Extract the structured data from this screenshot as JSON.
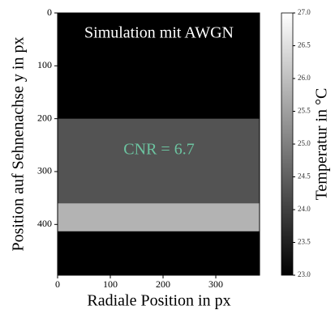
{
  "chart_data": {
    "type": "image",
    "annotations": [
      "Simulation mit AWGN",
      "CNR = 6.7"
    ],
    "x_label": "Radiale Position in px",
    "y_label": "Position auf Sehnenachse y in px",
    "colorbar_label": "Temperatur in °C",
    "colormap": "gray",
    "xlim": [
      0,
      383
    ],
    "ylim": [
      496,
      0
    ],
    "xticks": [
      0,
      100,
      200,
      300
    ],
    "yticks": [
      0,
      100,
      200,
      300,
      400
    ],
    "background": 23,
    "bands": [
      {
        "y": [
          200,
          360
        ],
        "value": 24.3
      },
      {
        "y": [
          360,
          413
        ],
        "value": 25.8
      }
    ],
    "clim": [
      23,
      27
    ],
    "cticks": [
      {
        "value": 23,
        "label": "23.0"
      },
      23.5,
      {
        "value": 24,
        "label": "24.0"
      },
      24.5,
      {
        "value": 25,
        "label": "25.0"
      },
      25.5,
      {
        "value": 26,
        "label": "26.0"
      },
      26.5,
      {
        "value": 27,
        "label": "27.0"
      }
    ],
    "annotation_colors": [
      "#ffffff",
      "#6cc3a0"
    ]
  }
}
